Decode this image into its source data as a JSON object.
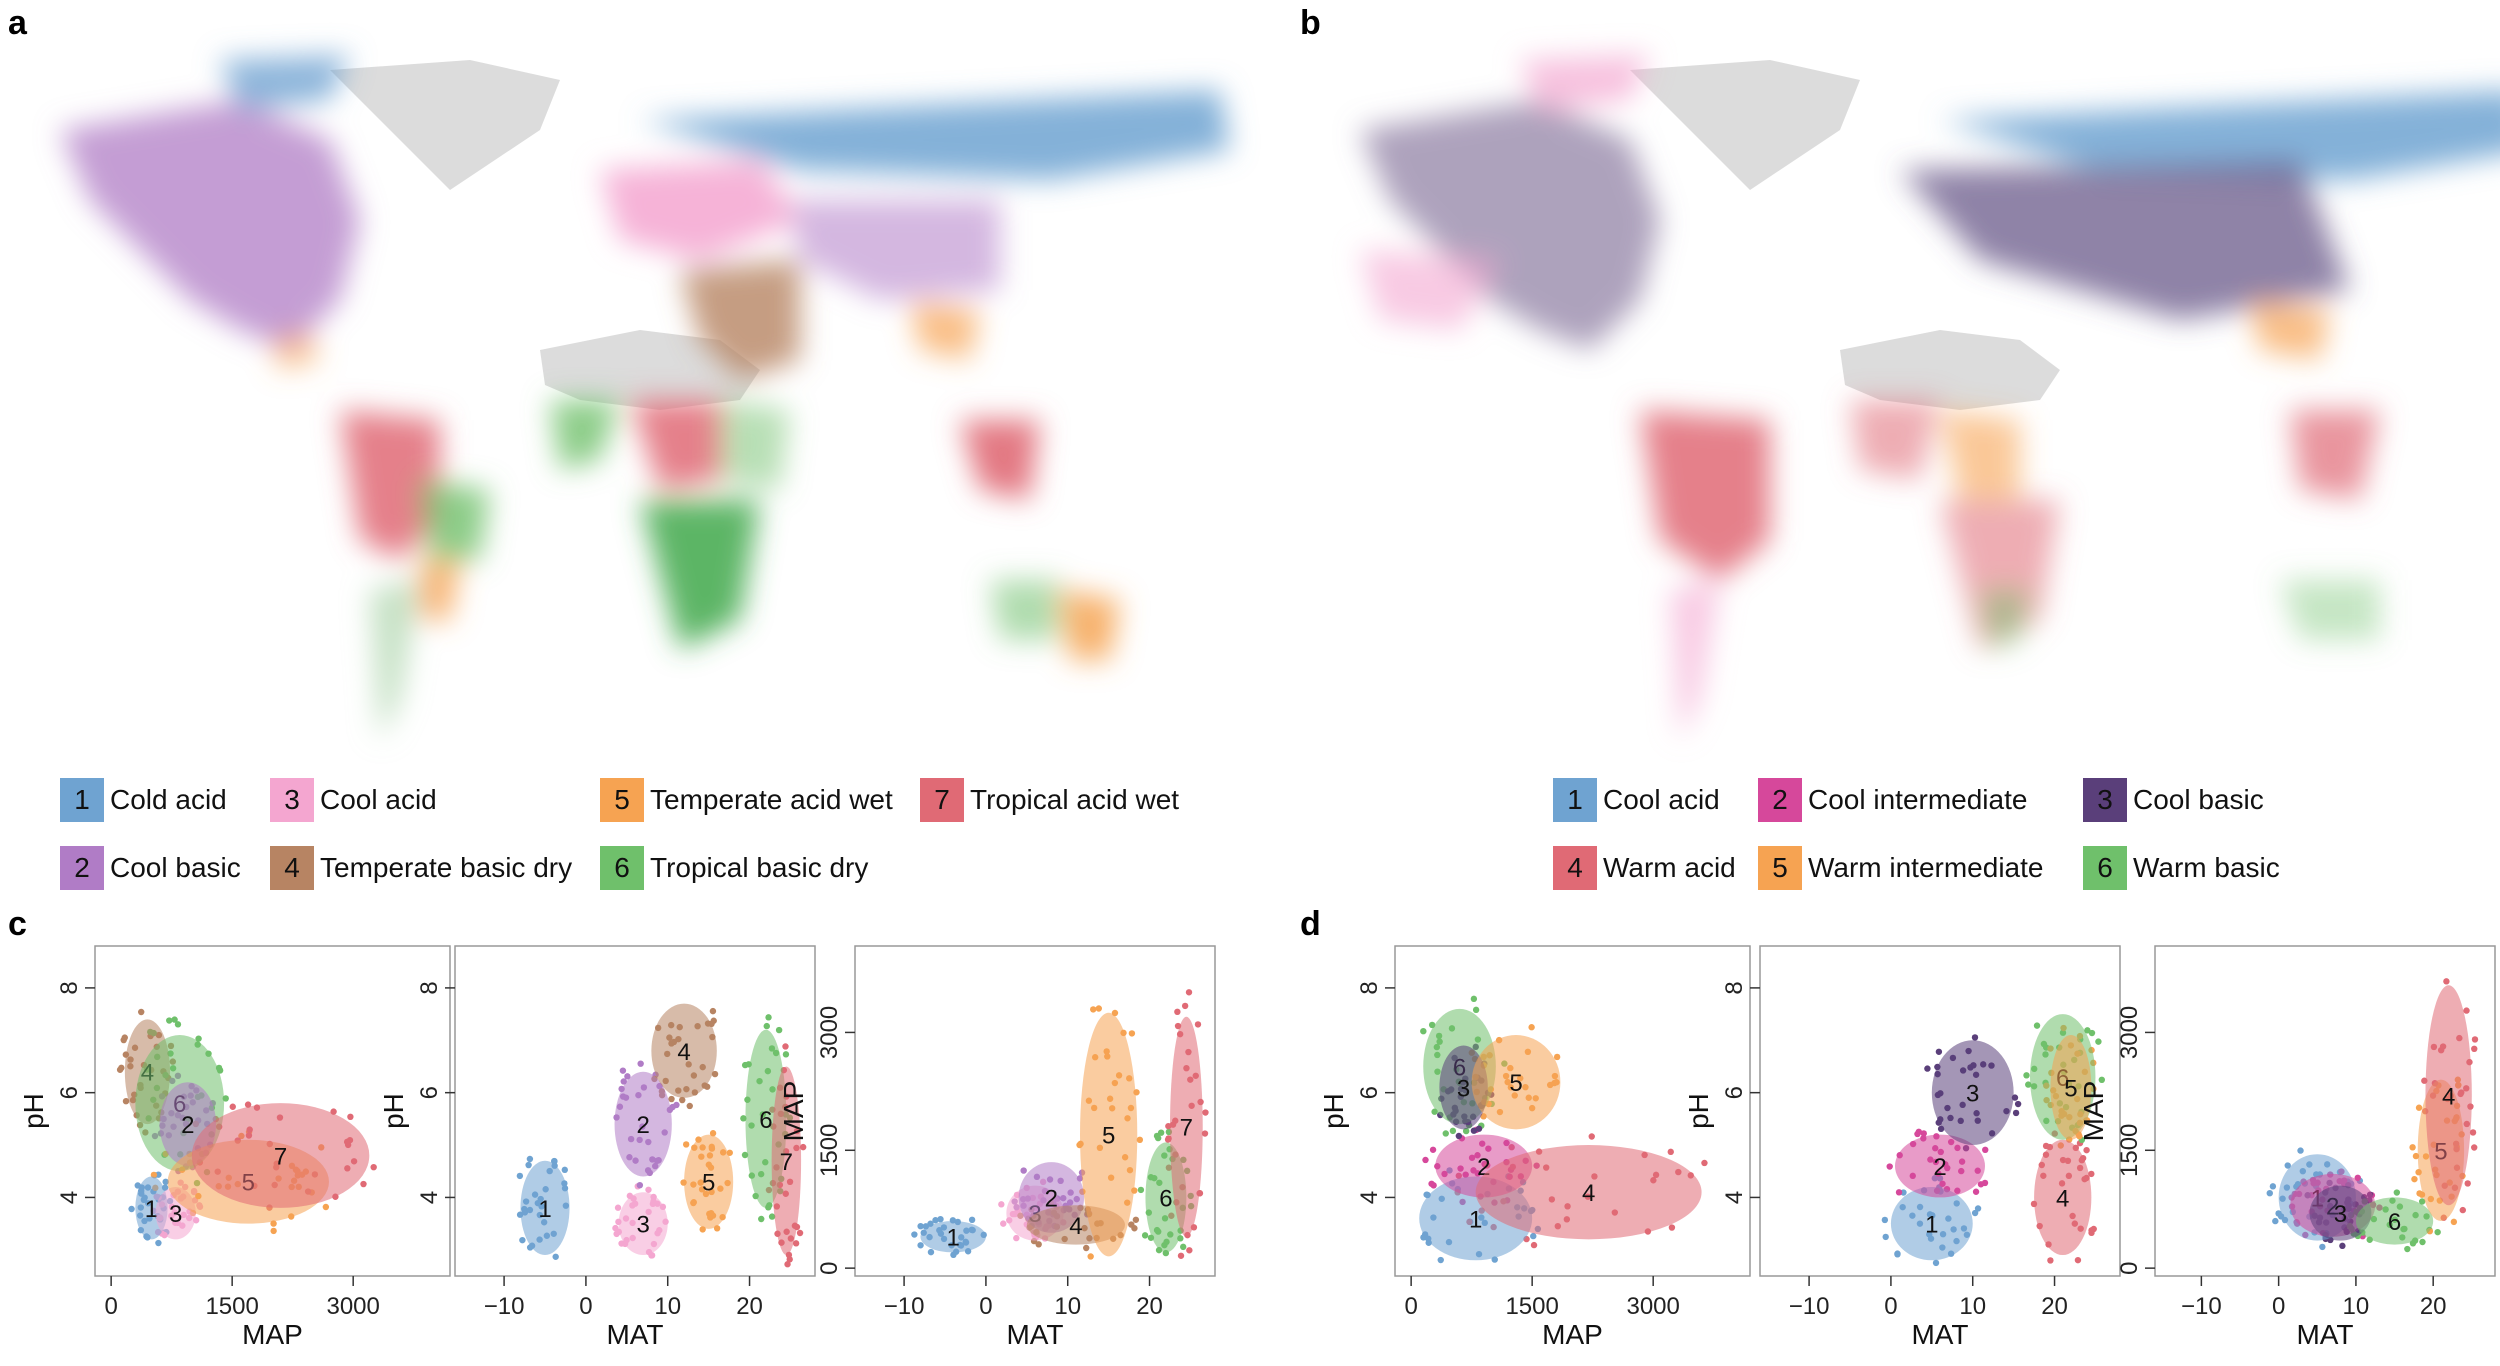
{
  "panels": {
    "a": "a",
    "b": "b",
    "c": "c",
    "d": "d"
  },
  "legend_a": [
    {
      "num": "1",
      "label": "Cold acid",
      "color": "#6fa3d1"
    },
    {
      "num": "3",
      "label": "Cool acid",
      "color": "#f4a6d0"
    },
    {
      "num": "5",
      "label": "Temperate acid wet",
      "color": "#f6a352"
    },
    {
      "num": "7",
      "label": "Tropical acid wet",
      "color": "#e06a75"
    },
    {
      "num": "2",
      "label": "Cool basic",
      "color": "#b07cc6"
    },
    {
      "num": "4",
      "label": "Temperate basic dry",
      "color": "#b78463"
    },
    {
      "num": "6",
      "label": "Tropical basic dry",
      "color": "#6fc06b"
    }
  ],
  "legend_b": [
    {
      "num": "1",
      "label": "Cool acid",
      "color": "#6fa3d1"
    },
    {
      "num": "2",
      "label": "Cool intermediate",
      "color": "#d6489b"
    },
    {
      "num": "3",
      "label": "Cool basic",
      "color": "#5a3f7a"
    },
    {
      "num": "4",
      "label": "Warm acid",
      "color": "#e06a75"
    },
    {
      "num": "5",
      "label": "Warm intermediate",
      "color": "#f6a352"
    },
    {
      "num": "6",
      "label": "Warm basic",
      "color": "#6fc06b"
    }
  ],
  "colors": {
    "land_gray": "#dcdcdc",
    "blue": "#6fa3d1",
    "purple": "#b07cc6",
    "pink": "#f4a6d0",
    "brown": "#b78463",
    "orange": "#f6a352",
    "green": "#6fc06b",
    "red": "#e06a75",
    "magenta": "#d6489b",
    "darkpurple": "#5a3f7a"
  },
  "chart_data": [
    {
      "type": "scatter",
      "id": "c1",
      "xlabel": "MAP",
      "ylabel": "pH",
      "xticks": [
        "0",
        "1500",
        "3000"
      ],
      "yticks": [
        "4",
        "6",
        "8"
      ],
      "xlim": [
        -200,
        4200
      ],
      "ylim": [
        2.5,
        8.8
      ],
      "clusters": [
        {
          "name": "1",
          "color": "#6fa3d1",
          "cx": 500,
          "cy": 3.8,
          "rx": 200,
          "ry": 0.6
        },
        {
          "name": "3",
          "color": "#f4a6d0",
          "cx": 800,
          "cy": 3.7,
          "rx": 250,
          "ry": 0.5
        },
        {
          "name": "4",
          "color": "#b78463",
          "cx": 450,
          "cy": 6.4,
          "rx": 280,
          "ry": 1.0
        },
        {
          "name": "6",
          "color": "#6fc06b",
          "cx": 850,
          "cy": 5.8,
          "rx": 550,
          "ry": 1.3
        },
        {
          "name": "2",
          "color": "#b07cc6",
          "cx": 950,
          "cy": 5.4,
          "rx": 350,
          "ry": 0.8
        },
        {
          "name": "5",
          "color": "#f6a352",
          "cx": 1700,
          "cy": 4.3,
          "rx": 1000,
          "ry": 0.8
        },
        {
          "name": "7",
          "color": "#e06a75",
          "cx": 2100,
          "cy": 4.8,
          "rx": 1100,
          "ry": 1.0
        }
      ]
    },
    {
      "type": "scatter",
      "id": "c2",
      "xlabel": "MAT",
      "ylabel": "pH",
      "xticks": [
        "−10",
        "0",
        "10",
        "20"
      ],
      "yticks": [
        "4",
        "6",
        "8"
      ],
      "xlim": [
        -16,
        28
      ],
      "ylim": [
        2.5,
        8.8
      ],
      "clusters": [
        {
          "name": "1",
          "color": "#6fa3d1",
          "cx": -5,
          "cy": 3.8,
          "rx": 3,
          "ry": 0.9
        },
        {
          "name": "3",
          "color": "#f4a6d0",
          "cx": 7,
          "cy": 3.5,
          "rx": 3,
          "ry": 0.6
        },
        {
          "name": "2",
          "color": "#b07cc6",
          "cx": 7,
          "cy": 5.4,
          "rx": 3.5,
          "ry": 1.0
        },
        {
          "name": "4",
          "color": "#b78463",
          "cx": 12,
          "cy": 6.8,
          "rx": 4,
          "ry": 0.9
        },
        {
          "name": "5",
          "color": "#f6a352",
          "cx": 15,
          "cy": 4.3,
          "rx": 3,
          "ry": 0.9
        },
        {
          "name": "6",
          "color": "#6fc06b",
          "cx": 22,
          "cy": 5.5,
          "rx": 2.5,
          "ry": 1.7
        },
        {
          "name": "7",
          "color": "#e06a75",
          "cx": 24.5,
          "cy": 4.7,
          "rx": 1.8,
          "ry": 1.8
        }
      ]
    },
    {
      "type": "scatter",
      "id": "c3",
      "xlabel": "MAT",
      "ylabel": "MAP",
      "xticks": [
        "−10",
        "0",
        "10",
        "20"
      ],
      "yticks": [
        "0",
        "1500",
        "3000"
      ],
      "xlim": [
        -16,
        28
      ],
      "ylim": [
        -100,
        4100
      ],
      "clusters": [
        {
          "name": "1",
          "color": "#6fa3d1",
          "cx": -4,
          "cy": 400,
          "rx": 4,
          "ry": 200
        },
        {
          "name": "3",
          "color": "#f4a6d0",
          "cx": 6,
          "cy": 700,
          "rx": 3.5,
          "ry": 350
        },
        {
          "name": "2",
          "color": "#b07cc6",
          "cx": 8,
          "cy": 900,
          "rx": 4,
          "ry": 450
        },
        {
          "name": "4",
          "color": "#b78463",
          "cx": 11,
          "cy": 550,
          "rx": 6,
          "ry": 250
        },
        {
          "name": "5",
          "color": "#f6a352",
          "cx": 15,
          "cy": 1700,
          "rx": 3.5,
          "ry": 1550
        },
        {
          "name": "6",
          "color": "#6fc06b",
          "cx": 22,
          "cy": 900,
          "rx": 2.5,
          "ry": 700
        },
        {
          "name": "7",
          "color": "#e06a75",
          "cx": 24.5,
          "cy": 1800,
          "rx": 2,
          "ry": 1400
        }
      ]
    },
    {
      "type": "scatter",
      "id": "d1",
      "xlabel": "MAP",
      "ylabel": "pH",
      "xticks": [
        "0",
        "1500",
        "3000"
      ],
      "yticks": [
        "4",
        "6",
        "8"
      ],
      "xlim": [
        -200,
        4200
      ],
      "ylim": [
        2.5,
        8.8
      ],
      "clusters": [
        {
          "name": "1",
          "color": "#6fa3d1",
          "cx": 800,
          "cy": 3.6,
          "rx": 700,
          "ry": 0.8
        },
        {
          "name": "2",
          "color": "#d6489b",
          "cx": 900,
          "cy": 4.6,
          "rx": 600,
          "ry": 0.6
        },
        {
          "name": "4",
          "color": "#e06a75",
          "cx": 2200,
          "cy": 4.1,
          "rx": 1400,
          "ry": 0.9
        },
        {
          "name": "6",
          "color": "#6fc06b",
          "cx": 600,
          "cy": 6.5,
          "rx": 450,
          "ry": 1.1
        },
        {
          "name": "3",
          "color": "#5a3f7a",
          "cx": 650,
          "cy": 6.1,
          "rx": 300,
          "ry": 0.8
        },
        {
          "name": "5",
          "color": "#f6a352",
          "cx": 1300,
          "cy": 6.2,
          "rx": 550,
          "ry": 0.9
        }
      ]
    },
    {
      "type": "scatter",
      "id": "d2",
      "xlabel": "MAT",
      "ylabel": "pH",
      "xticks": [
        "−10",
        "0",
        "10",
        "20"
      ],
      "yticks": [
        "4",
        "6",
        "8"
      ],
      "xlim": [
        -16,
        28
      ],
      "ylim": [
        2.5,
        8.8
      ],
      "clusters": [
        {
          "name": "1",
          "color": "#6fa3d1",
          "cx": 5,
          "cy": 3.5,
          "rx": 5,
          "ry": 0.7
        },
        {
          "name": "2",
          "color": "#d6489b",
          "cx": 6,
          "cy": 4.6,
          "rx": 5.5,
          "ry": 0.6
        },
        {
          "name": "3",
          "color": "#5a3f7a",
          "cx": 10,
          "cy": 6.0,
          "rx": 5,
          "ry": 1.0
        },
        {
          "name": "4",
          "color": "#e06a75",
          "cx": 21,
          "cy": 4.0,
          "rx": 3.5,
          "ry": 1.1
        },
        {
          "name": "6",
          "color": "#6fc06b",
          "cx": 21,
          "cy": 6.3,
          "rx": 4,
          "ry": 1.2
        },
        {
          "name": "5",
          "color": "#f6a352",
          "cx": 22,
          "cy": 6.1,
          "rx": 2.5,
          "ry": 1.0
        }
      ]
    },
    {
      "type": "scatter",
      "id": "d3",
      "xlabel": "MAT",
      "ylabel": "MAP",
      "xticks": [
        "−10",
        "0",
        "10",
        "20"
      ],
      "yticks": [
        "0",
        "1500",
        "3000"
      ],
      "xlim": [
        -16,
        28
      ],
      "ylim": [
        -100,
        4100
      ],
      "clusters": [
        {
          "name": "1",
          "color": "#6fa3d1",
          "cx": 5,
          "cy": 900,
          "rx": 5,
          "ry": 550
        },
        {
          "name": "2",
          "color": "#d6489b",
          "cx": 7,
          "cy": 800,
          "rx": 5.5,
          "ry": 400
        },
        {
          "name": "3",
          "color": "#5a3f7a",
          "cx": 8,
          "cy": 700,
          "rx": 4,
          "ry": 350
        },
        {
          "name": "6",
          "color": "#6fc06b",
          "cx": 15,
          "cy": 600,
          "rx": 5,
          "ry": 300
        },
        {
          "name": "5",
          "color": "#f6a352",
          "cx": 21,
          "cy": 1500,
          "rx": 3,
          "ry": 900
        },
        {
          "name": "4",
          "color": "#e06a75",
          "cx": 22,
          "cy": 2200,
          "rx": 3,
          "ry": 1400
        }
      ]
    }
  ]
}
